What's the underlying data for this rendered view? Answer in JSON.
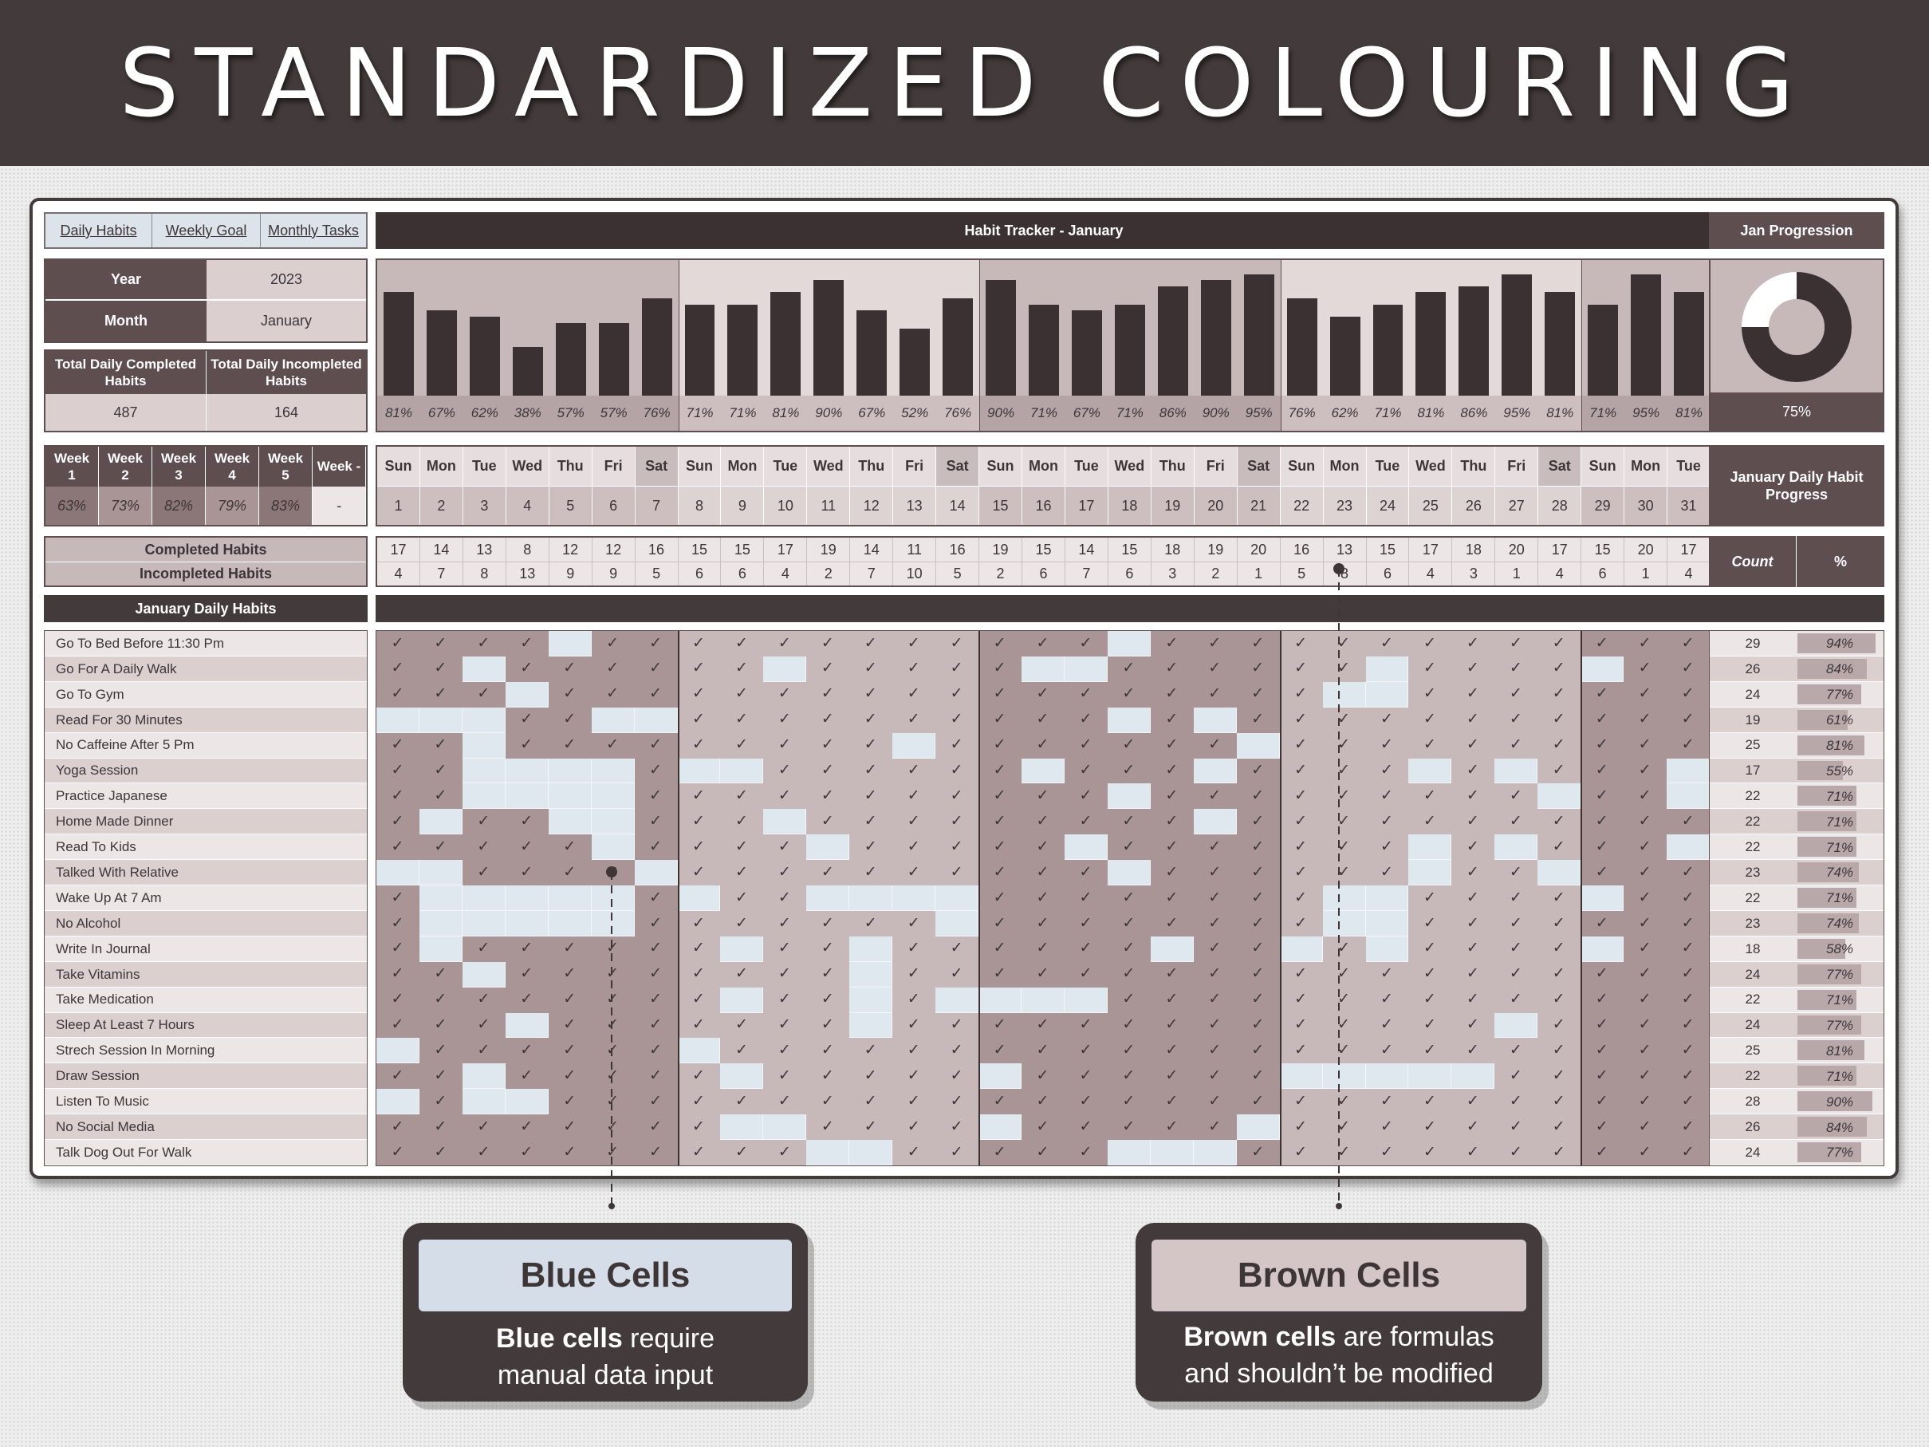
{
  "header": {
    "title": "STANDARDIZED COLOURING"
  },
  "nav": {
    "tabs": [
      "Daily Habits",
      "Weekly Goal",
      "Monthly Tasks"
    ]
  },
  "tracker": {
    "title": "Habit Tracker - January"
  },
  "progression": {
    "title": "Jan Progression",
    "percent": "75%",
    "ratio": 0.75,
    "daily_title": "January Daily Habit Progress",
    "count_label": "Count",
    "pct_label": "%"
  },
  "info": {
    "year_label": "Year",
    "year": "2023",
    "month_label": "Month",
    "month": "January",
    "completed_label": "Total Daily Completed Habits",
    "incompleted_label": "Total Daily Incompleted Habits",
    "completed": "487",
    "incompleted": "164"
  },
  "weeks": {
    "labels": [
      "Week 1",
      "Week 2",
      "Week 3",
      "Week 4",
      "Week 5",
      "Week -"
    ],
    "values": [
      "63%",
      "73%",
      "82%",
      "79%",
      "83%",
      "-"
    ]
  },
  "rows": {
    "completed_label": "Completed Habits",
    "incompleted_label": "Incompleted Habits",
    "habits_title": "January Daily Habits"
  },
  "days": {
    "names": [
      "Sun",
      "Mon",
      "Tue",
      "Wed",
      "Thu",
      "Fri",
      "Sat",
      "Sun",
      "Mon",
      "Tue",
      "Wed",
      "Thu",
      "Fri",
      "Sat",
      "Sun",
      "Mon",
      "Tue",
      "Wed",
      "Thu",
      "Fri",
      "Sat",
      "Sun",
      "Mon",
      "Tue",
      "Wed",
      "Thu",
      "Fri",
      "Sat",
      "Sun",
      "Mon",
      "Tue"
    ],
    "dates": [
      "1",
      "2",
      "3",
      "4",
      "5",
      "6",
      "7",
      "8",
      "9",
      "10",
      "11",
      "12",
      "13",
      "14",
      "15",
      "16",
      "17",
      "18",
      "19",
      "20",
      "21",
      "22",
      "23",
      "24",
      "25",
      "26",
      "27",
      "28",
      "29",
      "30",
      "31"
    ],
    "completed": [
      17,
      14,
      13,
      8,
      12,
      12,
      16,
      15,
      15,
      17,
      19,
      14,
      11,
      16,
      19,
      15,
      14,
      15,
      18,
      19,
      20,
      16,
      13,
      15,
      17,
      18,
      20,
      17,
      15,
      20,
      17
    ],
    "incompleted": [
      4,
      7,
      8,
      13,
      9,
      9,
      5,
      6,
      6,
      4,
      2,
      7,
      10,
      5,
      2,
      6,
      7,
      6,
      3,
      2,
      1,
      5,
      8,
      6,
      4,
      3,
      1,
      4,
      6,
      1,
      4
    ],
    "percent": [
      "81%",
      "67%",
      "62%",
      "38%",
      "57%",
      "57%",
      "76%",
      "71%",
      "71%",
      "81%",
      "90%",
      "67%",
      "52%",
      "76%",
      "90%",
      "71%",
      "67%",
      "71%",
      "86%",
      "90%",
      "95%",
      "76%",
      "62%",
      "71%",
      "81%",
      "86%",
      "95%",
      "81%",
      "71%",
      "95%",
      "81%"
    ]
  },
  "habits": [
    {
      "name": "Go To Bed Before 11:30 Pm",
      "count": "29",
      "pct": "94%"
    },
    {
      "name": "Go For A Daily Walk",
      "count": "26",
      "pct": "84%"
    },
    {
      "name": "Go To Gym",
      "count": "24",
      "pct": "77%"
    },
    {
      "name": "Read For 30 Minutes",
      "count": "19",
      "pct": "61%"
    },
    {
      "name": "No Caffeine After 5 Pm",
      "count": "25",
      "pct": "81%"
    },
    {
      "name": "Yoga Session",
      "count": "17",
      "pct": "55%"
    },
    {
      "name": "Practice Japanese",
      "count": "22",
      "pct": "71%"
    },
    {
      "name": "Home Made Dinner",
      "count": "22",
      "pct": "71%"
    },
    {
      "name": "Read To Kids",
      "count": "22",
      "pct": "71%"
    },
    {
      "name": "Talked With Relative",
      "count": "23",
      "pct": "74%"
    },
    {
      "name": "Wake Up At 7 Am",
      "count": "22",
      "pct": "71%"
    },
    {
      "name": "No Alcohol",
      "count": "23",
      "pct": "74%"
    },
    {
      "name": "Write In Journal",
      "count": "18",
      "pct": "58%"
    },
    {
      "name": "Take Vitamins",
      "count": "24",
      "pct": "77%"
    },
    {
      "name": "Take Medication",
      "count": "22",
      "pct": "71%"
    },
    {
      "name": "Sleep At Least 7 Hours",
      "count": "24",
      "pct": "77%"
    },
    {
      "name": "Strech Session In Morning",
      "count": "25",
      "pct": "81%"
    },
    {
      "name": "Draw Session",
      "count": "22",
      "pct": "71%"
    },
    {
      "name": "Listen To Music",
      "count": "28",
      "pct": "90%"
    },
    {
      "name": "No Social Media",
      "count": "26",
      "pct": "84%"
    },
    {
      "name": "Talk Dog Out For Walk",
      "count": "24",
      "pct": "77%"
    }
  ],
  "grid": [
    "1111011111111111101111111111111",
    "1101111110111110011111101111011",
    "1110111111111111111111001111111",
    "0001100111111111101011111111111",
    "1101111111110111111101111111111",
    "1100001001111110111011110101110",
    "1100001111111111101111111110110",
    "1011001110111111111011111111111",
    "1111101111011111011111110101110",
    "0011110111111111101111110110111",
    "1000001011000011111111001111011",
    "1000001111111011111111001111111",
    "1011111101101111110110101111011",
    "1101111111101111111111111111111",
    "1111111101101000011111111111111",
    "1110111111101111111111111101111",
    "0111111011111111111111111111111",
    "1101111101111101111110000011111",
    "0100111111111111111111111111111",
    "1111111100111101111101111111111",
    "1111111111001111100011111111111"
  ],
  "callouts": {
    "blue_title": "Blue Cells",
    "blue_bold": "Blue cells",
    "blue_rest": " require",
    "blue_line2": "manual data input",
    "brown_title": "Brown Cells",
    "brown_bold": "Brown cells",
    "brown_rest": " are formulas",
    "brown_line2": "and shouldn’t be modified"
  },
  "colors": {
    "dark": "#433a3b",
    "header_cell": "#5e4e4f",
    "light": "#dccfcf",
    "band_dark": "#a99596",
    "band_light": "#c7b8b9",
    "blue_cell": "#dfe7ef",
    "bar": "#3b3132"
  }
}
